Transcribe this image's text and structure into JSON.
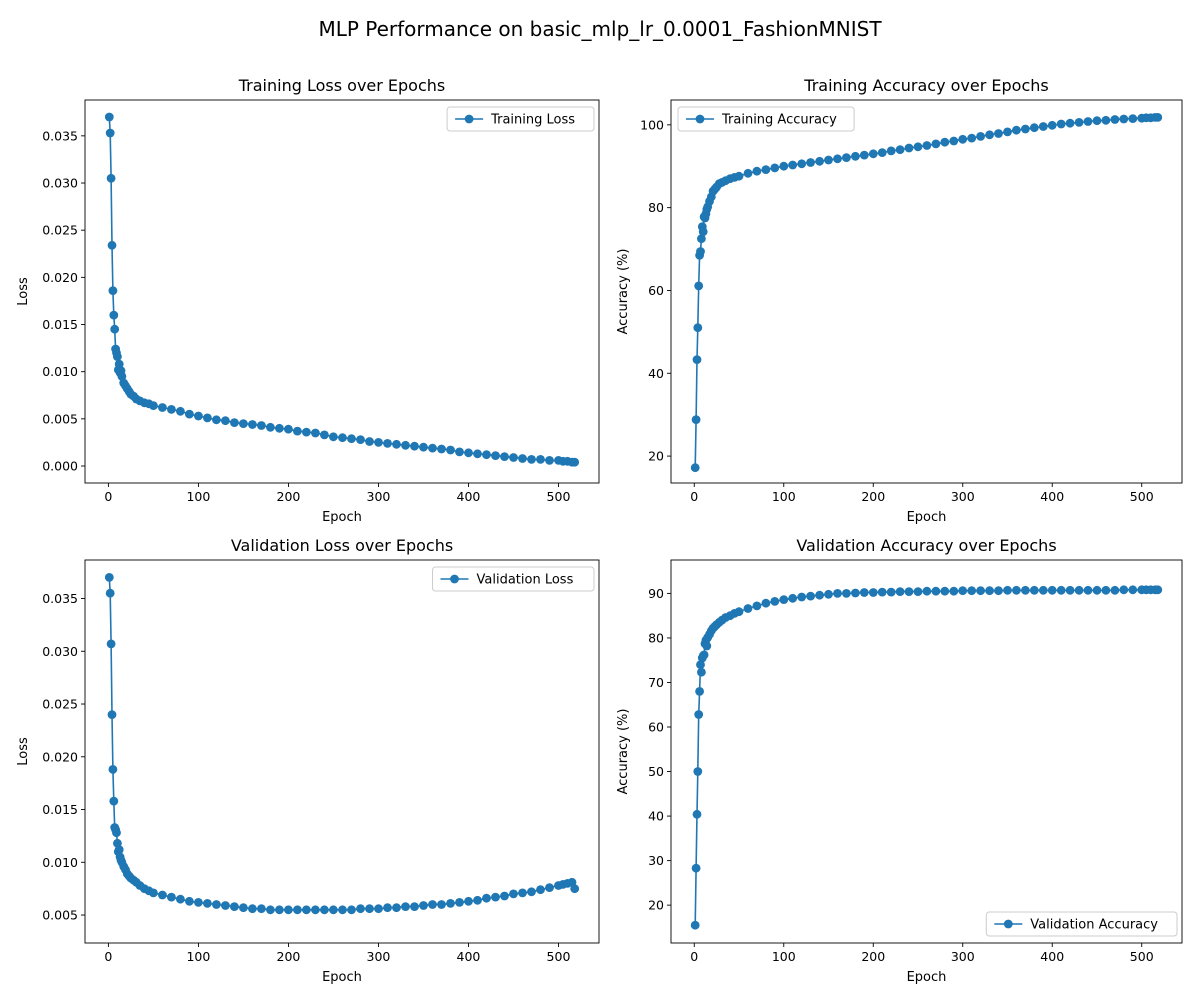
{
  "figure": {
    "title": "MLP Performance on basic_mlp_lr_0.0001_FashionMNIST",
    "colors": {
      "series": "#1f77b4",
      "background": "#ffffff",
      "axes": "#000000"
    }
  },
  "chart_data": [
    {
      "type": "line",
      "title": "Training Loss over Epochs",
      "xlabel": "Epoch",
      "ylabel": "Loss",
      "grid": false,
      "legend_placement": "top-right",
      "xlim": [
        -26,
        545
      ],
      "ylim": [
        -0.0018,
        0.0388
      ],
      "x_ticks": [
        0,
        100,
        200,
        300,
        400,
        500
      ],
      "x_tick_labels": [
        "0",
        "100",
        "200",
        "300",
        "400",
        "500"
      ],
      "y_ticks": [
        0.0,
        0.005,
        0.01,
        0.015,
        0.02,
        0.025,
        0.03,
        0.035
      ],
      "y_tick_labels": [
        "0.000",
        "0.005",
        "0.010",
        "0.015",
        "0.020",
        "0.025",
        "0.030",
        "0.035"
      ],
      "series": [
        {
          "name": "Training Loss",
          "x": [
            1,
            2,
            3,
            4,
            5,
            6,
            7,
            8,
            9,
            10,
            11,
            12,
            13,
            14,
            15,
            17,
            19,
            21,
            23,
            25,
            28,
            31,
            35,
            40,
            45,
            50,
            60,
            70,
            80,
            90,
            100,
            110,
            120,
            130,
            140,
            150,
            160,
            170,
            180,
            190,
            200,
            210,
            220,
            230,
            240,
            250,
            260,
            270,
            280,
            290,
            300,
            310,
            320,
            330,
            340,
            350,
            360,
            370,
            380,
            390,
            400,
            410,
            420,
            430,
            440,
            450,
            460,
            470,
            480,
            490,
            500,
            505,
            510,
            515,
            518
          ],
          "y": [
            0.037,
            0.0353,
            0.0305,
            0.0234,
            0.0186,
            0.016,
            0.0145,
            0.0124,
            0.012,
            0.0116,
            0.0102,
            0.0108,
            0.0099,
            0.0101,
            0.0095,
            0.0088,
            0.0085,
            0.0082,
            0.0079,
            0.0076,
            0.0074,
            0.0071,
            0.0069,
            0.0067,
            0.0066,
            0.0064,
            0.0062,
            0.006,
            0.0058,
            0.0055,
            0.0053,
            0.0051,
            0.0049,
            0.0048,
            0.0046,
            0.0045,
            0.0044,
            0.0043,
            0.0041,
            0.004,
            0.0039,
            0.0037,
            0.0036,
            0.0035,
            0.0033,
            0.0031,
            0.003,
            0.0029,
            0.0028,
            0.0026,
            0.0025,
            0.0024,
            0.0023,
            0.0022,
            0.0021,
            0.002,
            0.0019,
            0.0018,
            0.0017,
            0.0015,
            0.0014,
            0.0013,
            0.0012,
            0.0011,
            0.001,
            0.0009,
            0.0008,
            0.0007,
            0.0007,
            0.0006,
            0.0006,
            0.0005,
            0.0005,
            0.0004,
            0.0004
          ]
        }
      ]
    },
    {
      "type": "line",
      "title": "Training Accuracy over Epochs",
      "xlabel": "Epoch",
      "ylabel": "Accuracy (%)",
      "grid": false,
      "legend_placement": "top-left",
      "xlim": [
        -26,
        545
      ],
      "ylim": [
        13.5,
        106
      ],
      "x_ticks": [
        0,
        100,
        200,
        300,
        400,
        500
      ],
      "x_tick_labels": [
        "0",
        "100",
        "200",
        "300",
        "400",
        "500"
      ],
      "y_ticks": [
        20,
        40,
        60,
        80,
        100
      ],
      "y_tick_labels": [
        "20",
        "40",
        "60",
        "80",
        "100"
      ],
      "series": [
        {
          "name": "Training Accuracy",
          "x": [
            1,
            2,
            3,
            4,
            5,
            6,
            7,
            8,
            9,
            10,
            11,
            12,
            13,
            14,
            15,
            17,
            19,
            21,
            23,
            25,
            28,
            31,
            35,
            40,
            45,
            50,
            60,
            70,
            80,
            90,
            100,
            110,
            120,
            130,
            140,
            150,
            160,
            170,
            180,
            190,
            200,
            210,
            220,
            230,
            240,
            250,
            260,
            270,
            280,
            290,
            300,
            310,
            320,
            330,
            340,
            350,
            360,
            370,
            380,
            390,
            400,
            410,
            420,
            430,
            440,
            450,
            460,
            470,
            480,
            490,
            500,
            505,
            510,
            515,
            518
          ],
          "y": [
            17.2,
            28.8,
            43.3,
            51,
            61.1,
            68.5,
            69.4,
            72.5,
            75.4,
            74.2,
            77.8,
            77.5,
            78.5,
            79.6,
            80.2,
            81.5,
            82.6,
            84,
            84.5,
            85,
            85.8,
            86.1,
            86.5,
            87,
            87.3,
            87.6,
            88.3,
            88.8,
            89.2,
            89.6,
            90,
            90.3,
            90.6,
            90.9,
            91.2,
            91.5,
            91.8,
            92.1,
            92.4,
            92.7,
            93,
            93.3,
            93.7,
            94,
            94.4,
            94.7,
            95,
            95.4,
            95.8,
            96.1,
            96.5,
            96.8,
            97.2,
            97.6,
            97.9,
            98.3,
            98.7,
            99,
            99.3,
            99.6,
            99.9,
            100.2,
            100.4,
            100.6,
            100.8,
            101,
            101.1,
            101.3,
            101.4,
            101.5,
            101.6,
            101.7,
            101.7,
            101.8,
            101.8
          ]
        }
      ]
    },
    {
      "type": "line",
      "title": "Validation Loss over Epochs",
      "xlabel": "Epoch",
      "ylabel": "Loss",
      "grid": false,
      "legend_placement": "top-right",
      "xlim": [
        -26,
        545
      ],
      "ylim": [
        0.00235,
        0.03865
      ],
      "x_ticks": [
        0,
        100,
        200,
        300,
        400,
        500
      ],
      "x_tick_labels": [
        "0",
        "100",
        "200",
        "300",
        "400",
        "500"
      ],
      "y_ticks": [
        0.005,
        0.01,
        0.015,
        0.02,
        0.025,
        0.03,
        0.035
      ],
      "y_tick_labels": [
        "0.005",
        "0.010",
        "0.015",
        "0.020",
        "0.025",
        "0.030",
        "0.035"
      ],
      "series": [
        {
          "name": "Validation Loss",
          "x": [
            1,
            2,
            3,
            4,
            5,
            6,
            7,
            8,
            9,
            10,
            11,
            12,
            13,
            14,
            15,
            17,
            19,
            21,
            23,
            25,
            28,
            31,
            35,
            40,
            45,
            50,
            60,
            70,
            80,
            90,
            100,
            110,
            120,
            130,
            140,
            150,
            160,
            170,
            180,
            190,
            200,
            210,
            220,
            230,
            240,
            250,
            260,
            270,
            280,
            290,
            300,
            310,
            320,
            330,
            340,
            350,
            360,
            370,
            380,
            390,
            400,
            410,
            420,
            430,
            440,
            450,
            460,
            470,
            480,
            490,
            500,
            505,
            510,
            515,
            518
          ],
          "y": [
            0.037,
            0.0355,
            0.0307,
            0.024,
            0.0188,
            0.0158,
            0.0133,
            0.0131,
            0.0128,
            0.0118,
            0.011,
            0.0112,
            0.0105,
            0.0102,
            0.01,
            0.0096,
            0.0093,
            0.0089,
            0.0087,
            0.0085,
            0.0083,
            0.0081,
            0.0078,
            0.0075,
            0.0073,
            0.0071,
            0.0069,
            0.0067,
            0.0065,
            0.0063,
            0.0062,
            0.0061,
            0.006,
            0.0059,
            0.0058,
            0.0057,
            0.0056,
            0.0056,
            0.0055,
            0.0055,
            0.0055,
            0.0055,
            0.0055,
            0.0055,
            0.0055,
            0.0055,
            0.0055,
            0.0055,
            0.0056,
            0.0056,
            0.0056,
            0.0057,
            0.0057,
            0.0058,
            0.0058,
            0.0059,
            0.006,
            0.006,
            0.0061,
            0.0062,
            0.0063,
            0.0064,
            0.0066,
            0.0067,
            0.0068,
            0.007,
            0.0071,
            0.0072,
            0.0074,
            0.0076,
            0.0078,
            0.0079,
            0.008,
            0.0081,
            0.0075
          ]
        }
      ]
    },
    {
      "type": "line",
      "title": "Validation Accuracy over Epochs",
      "xlabel": "Epoch",
      "ylabel": "Accuracy (%)",
      "grid": false,
      "legend_placement": "bottom-right",
      "xlim": [
        -26,
        545
      ],
      "ylim": [
        11.5,
        97.5
      ],
      "x_ticks": [
        0,
        100,
        200,
        300,
        400,
        500
      ],
      "x_tick_labels": [
        "0",
        "100",
        "200",
        "300",
        "400",
        "500"
      ],
      "y_ticks": [
        20,
        30,
        40,
        50,
        60,
        70,
        80,
        90
      ],
      "y_tick_labels": [
        "20",
        "30",
        "40",
        "50",
        "60",
        "70",
        "80",
        "90"
      ],
      "series": [
        {
          "name": "Validation Accuracy",
          "x": [
            1,
            2,
            3,
            4,
            5,
            6,
            7,
            8,
            9,
            10,
            11,
            12,
            13,
            14,
            15,
            17,
            19,
            21,
            23,
            25,
            28,
            31,
            35,
            40,
            45,
            50,
            60,
            70,
            80,
            90,
            100,
            110,
            120,
            130,
            140,
            150,
            160,
            170,
            180,
            190,
            200,
            210,
            220,
            230,
            240,
            250,
            260,
            270,
            280,
            290,
            300,
            310,
            320,
            330,
            340,
            350,
            360,
            370,
            380,
            390,
            400,
            410,
            420,
            430,
            440,
            450,
            460,
            470,
            480,
            490,
            500,
            505,
            510,
            515,
            518
          ],
          "y": [
            15.5,
            28.3,
            40.4,
            50,
            62.8,
            68,
            74,
            72.3,
            75.5,
            76,
            76.2,
            78.7,
            79.5,
            78.2,
            80.1,
            80.8,
            81.6,
            82.2,
            82.6,
            83,
            83.5,
            84,
            84.6,
            85,
            85.5,
            85.9,
            86.6,
            87.2,
            87.8,
            88.2,
            88.6,
            88.9,
            89.2,
            89.4,
            89.6,
            89.8,
            90,
            90,
            90.1,
            90.2,
            90.2,
            90.3,
            90.3,
            90.4,
            90.4,
            90.4,
            90.5,
            90.5,
            90.5,
            90.5,
            90.6,
            90.6,
            90.6,
            90.6,
            90.6,
            90.7,
            90.7,
            90.7,
            90.7,
            90.7,
            90.7,
            90.7,
            90.7,
            90.7,
            90.7,
            90.7,
            90.7,
            90.7,
            90.8,
            90.8,
            90.8,
            90.8,
            90.8,
            90.8,
            90.8
          ]
        }
      ]
    }
  ]
}
